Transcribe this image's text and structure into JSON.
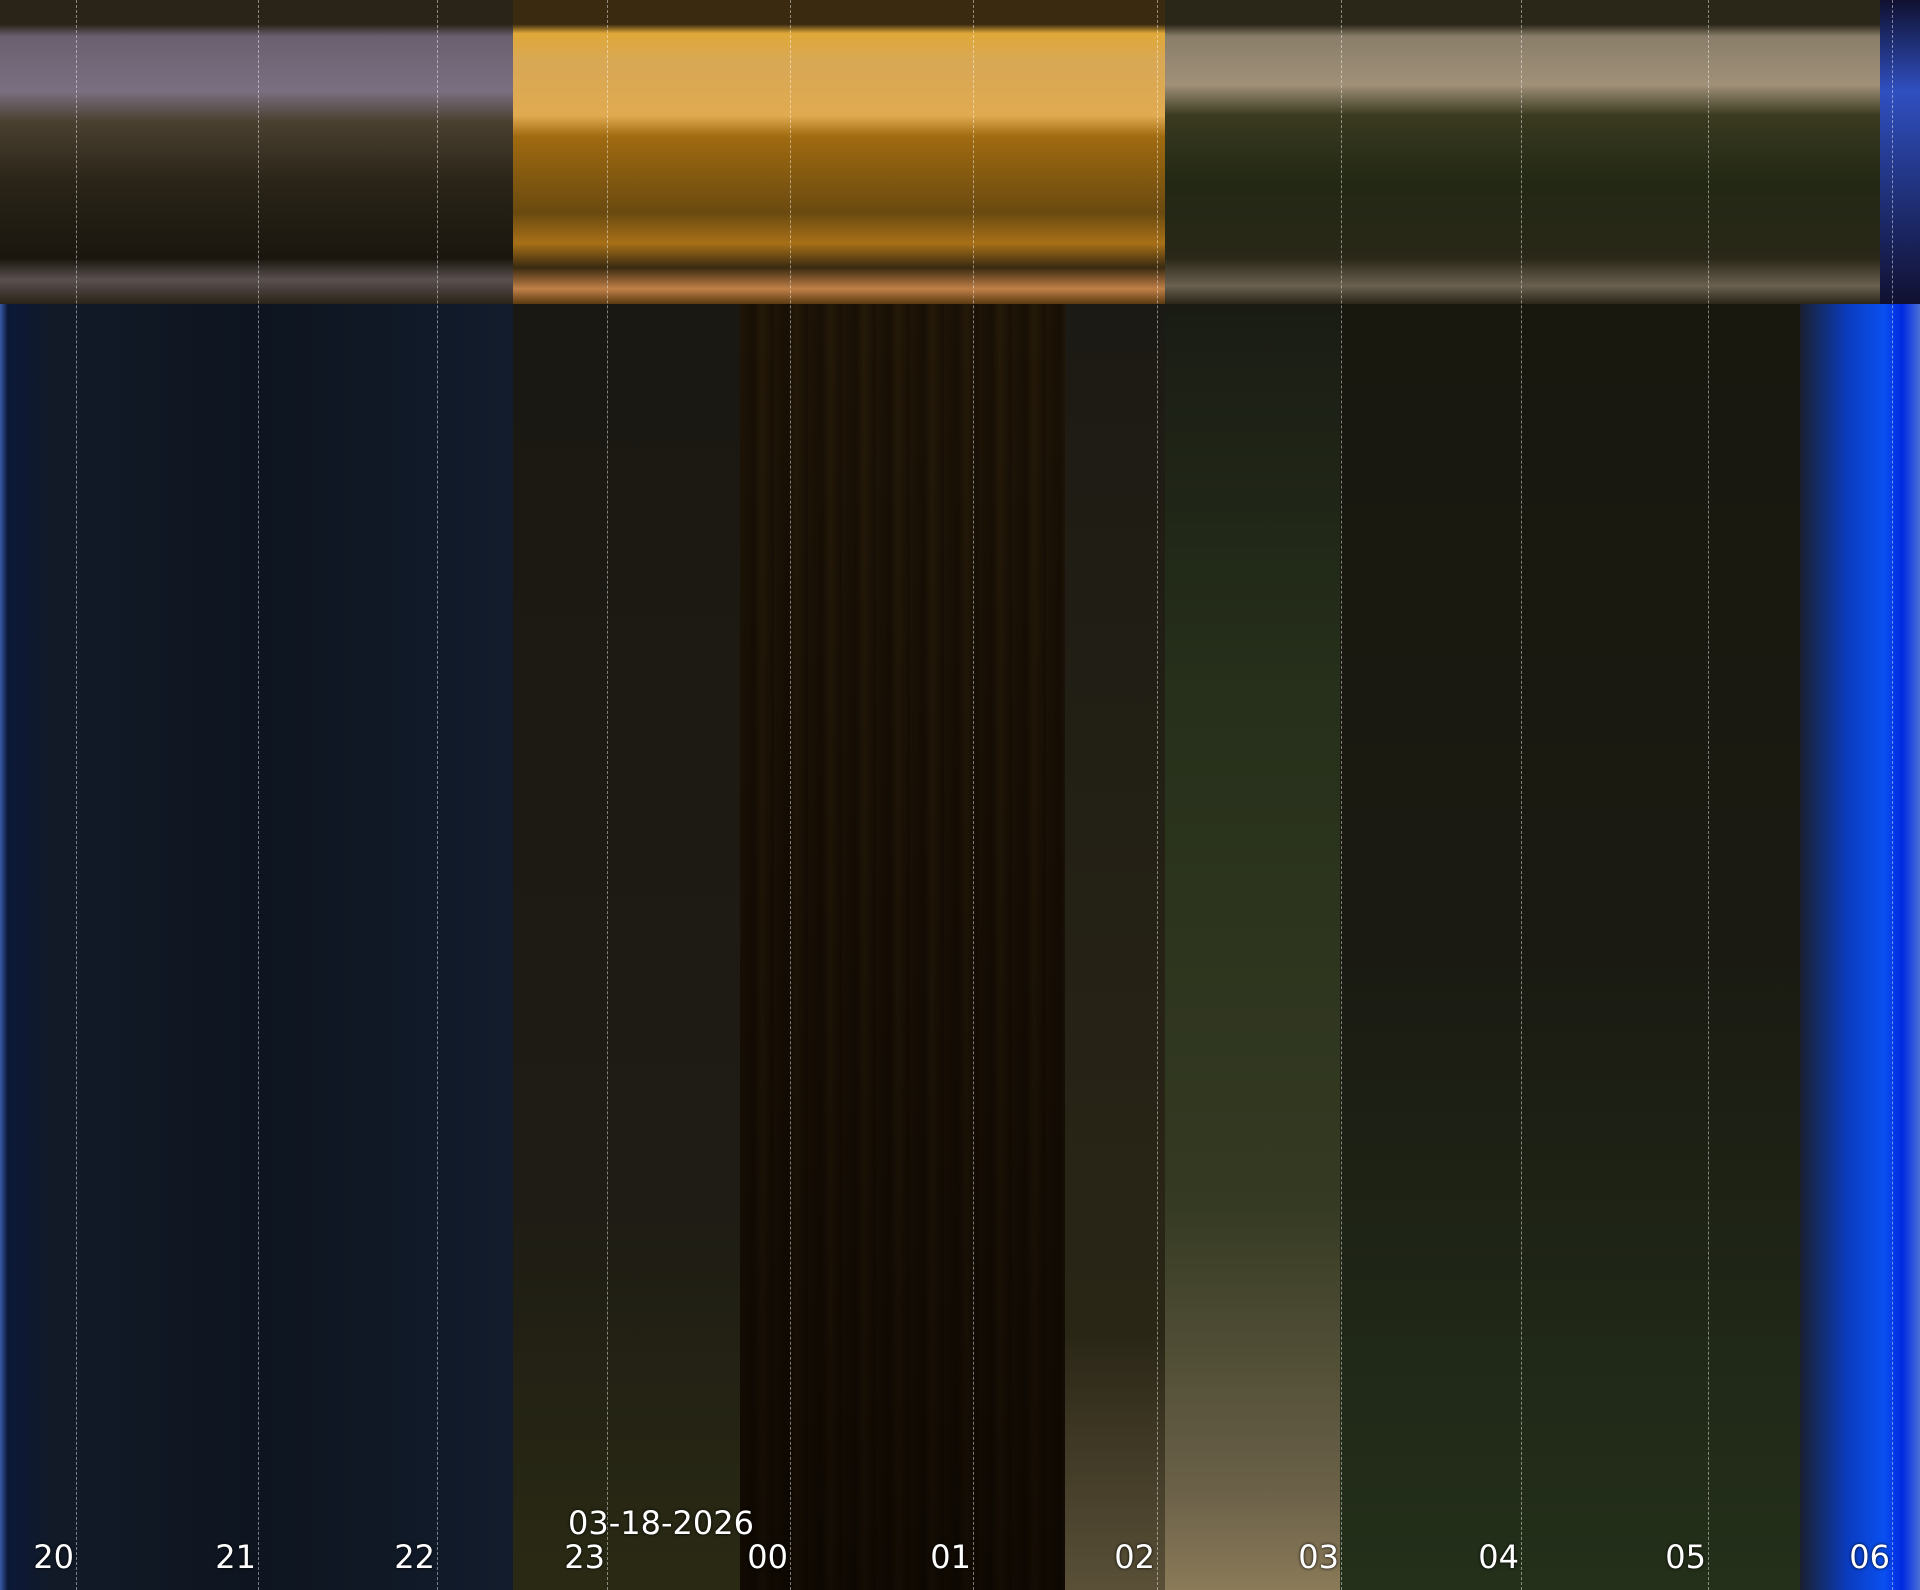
{
  "keogram": {
    "date_label": "03-18-2026",
    "hour_labels": [
      "20",
      "21",
      "22",
      "23",
      "00",
      "01",
      "02",
      "03",
      "04",
      "05",
      "06"
    ],
    "colors": {
      "night_sky": "#121a2a",
      "twilight_blue": "#0a4ee8",
      "lamp_orange": "#d89a2e",
      "olive": "#3a3a22"
    }
  }
}
